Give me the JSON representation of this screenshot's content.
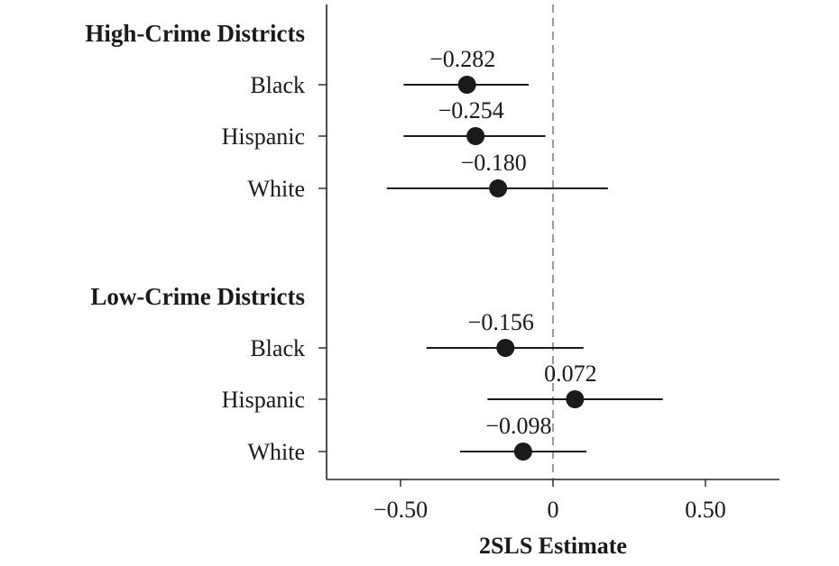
{
  "chart_data": {
    "type": "scatter",
    "xlabel": "2SLS Estimate",
    "xlim": [
      -0.75,
      0.75
    ],
    "xticks": [
      {
        "value": -0.5,
        "label": "−0.50"
      },
      {
        "value": 0,
        "label": "0"
      },
      {
        "value": 0.5,
        "label": "0.50"
      }
    ],
    "reference_line": {
      "x": 0,
      "style": "dashed"
    },
    "groups": [
      {
        "name": "High-Crime Districts",
        "rows": [
          {
            "category": "Black",
            "estimate": -0.282,
            "label": "−0.282",
            "ci": [
              -0.49,
              -0.08
            ]
          },
          {
            "category": "Hispanic",
            "estimate": -0.254,
            "label": "−0.254",
            "ci": [
              -0.49,
              -0.025
            ]
          },
          {
            "category": "White",
            "estimate": -0.18,
            "label": "−0.180",
            "ci": [
              -0.545,
              0.18
            ]
          }
        ]
      },
      {
        "name": "Low-Crime Districts",
        "rows": [
          {
            "category": "Black",
            "estimate": -0.156,
            "label": "−0.156",
            "ci": [
              -0.415,
              0.1
            ]
          },
          {
            "category": "Hispanic",
            "estimate": 0.072,
            "label": "0.072",
            "ci": [
              -0.215,
              0.36
            ]
          },
          {
            "category": "White",
            "estimate": -0.098,
            "label": "−0.098",
            "ci": [
              -0.305,
              0.11
            ]
          }
        ]
      }
    ]
  }
}
